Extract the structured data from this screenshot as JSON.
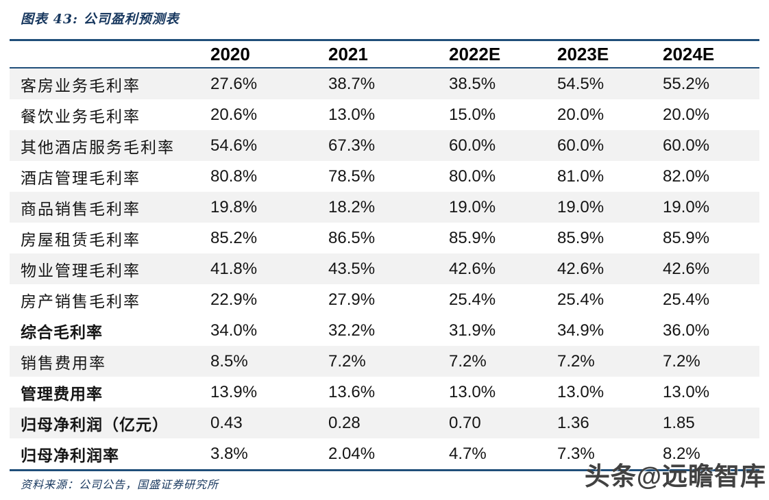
{
  "figure": {
    "title": "图表 43:  公司盈利预测表",
    "source": "资料来源：公司公告，国盛证券研究所",
    "watermark": "头条@远瞻智库"
  },
  "table": {
    "columns": [
      "2020",
      "2021",
      "2022E",
      "2023E",
      "2024E"
    ],
    "rows": [
      {
        "label": "客房业务毛利率",
        "values": [
          "27.6%",
          "38.7%",
          "38.5%",
          "54.5%",
          "55.2%"
        ],
        "bold": false,
        "shaded": true
      },
      {
        "label": "餐饮业务毛利率",
        "values": [
          "20.6%",
          "13.0%",
          "15.0%",
          "20.0%",
          "20.0%"
        ],
        "bold": false,
        "shaded": false
      },
      {
        "label": "其他酒店服务毛利率",
        "values": [
          "54.6%",
          "67.3%",
          "60.0%",
          "60.0%",
          "60.0%"
        ],
        "bold": false,
        "shaded": true
      },
      {
        "label": "酒店管理毛利率",
        "values": [
          "80.8%",
          "78.5%",
          "80.0%",
          "81.0%",
          "82.0%"
        ],
        "bold": false,
        "shaded": false
      },
      {
        "label": "商品销售毛利率",
        "values": [
          "19.8%",
          "18.2%",
          "19.0%",
          "19.0%",
          "19.0%"
        ],
        "bold": false,
        "shaded": true
      },
      {
        "label": "房屋租赁毛利率",
        "values": [
          "85.2%",
          "86.5%",
          "85.9%",
          "85.9%",
          "85.9%"
        ],
        "bold": false,
        "shaded": false
      },
      {
        "label": "物业管理毛利率",
        "values": [
          "41.8%",
          "43.5%",
          "42.6%",
          "42.6%",
          "42.6%"
        ],
        "bold": false,
        "shaded": true
      },
      {
        "label": "房产销售毛利率",
        "values": [
          "22.9%",
          "27.9%",
          "25.4%",
          "25.4%",
          "25.4%"
        ],
        "bold": false,
        "shaded": false
      },
      {
        "label": "综合毛利率",
        "values": [
          "34.0%",
          "32.2%",
          "31.9%",
          "34.9%",
          "36.0%"
        ],
        "bold": true,
        "shaded": false
      },
      {
        "label": "销售费用率",
        "values": [
          "8.5%",
          "7.2%",
          "7.2%",
          "7.2%",
          "7.2%"
        ],
        "bold": false,
        "shaded": true
      },
      {
        "label": "管理费用率",
        "values": [
          "13.9%",
          "13.6%",
          "13.0%",
          "13.0%",
          "13.0%"
        ],
        "bold": true,
        "shaded": false
      },
      {
        "label": "归母净利润（亿元）",
        "values": [
          "0.43",
          "0.28",
          "0.70",
          "1.36",
          "1.85"
        ],
        "bold": true,
        "shaded": true
      },
      {
        "label": "归母净利润率",
        "values": [
          "3.8%",
          "2.04%",
          "4.7%",
          "7.3%",
          "8.2%"
        ],
        "bold": true,
        "shaded": false
      }
    ]
  },
  "colors": {
    "border_navy": "#1f4e79",
    "title_navy": "#17375e",
    "stripe_gray": "#f2f2f2",
    "watermark_gray": "#414141"
  }
}
